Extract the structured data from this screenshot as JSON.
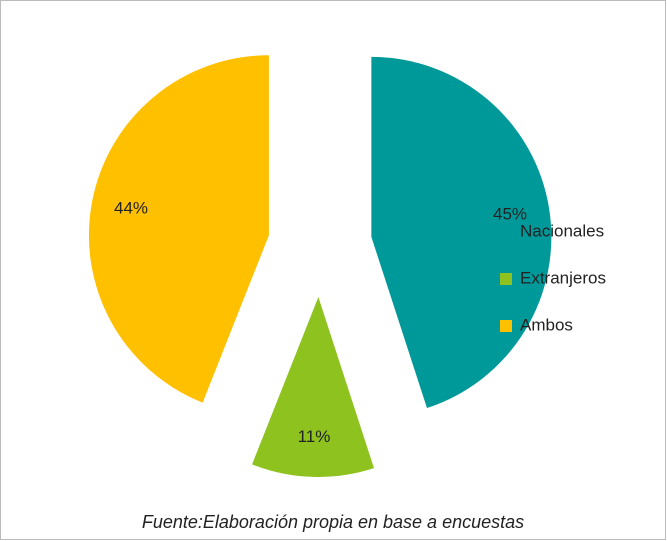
{
  "chart_data": {
    "type": "pie",
    "categories": [
      "Nacionales",
      "Extranjeros",
      "Ambos"
    ],
    "values": [
      45,
      11,
      44
    ],
    "value_labels": [
      "45%",
      "11%",
      "44%"
    ],
    "colors": [
      "#009999",
      "#8dc21f",
      "#ffc000"
    ],
    "caption": "Fuente:Elaboración propia en base a encuestas"
  }
}
